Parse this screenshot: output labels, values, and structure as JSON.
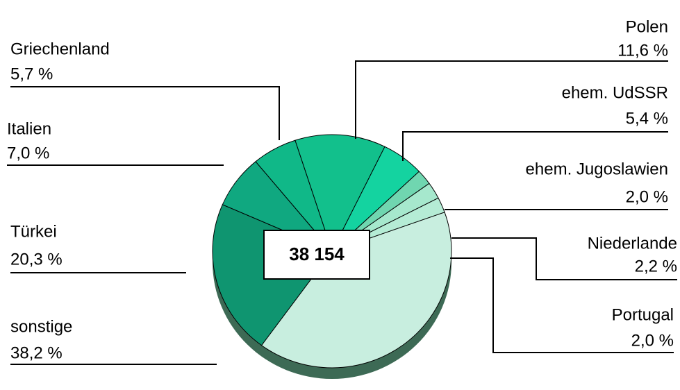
{
  "chart_data": {
    "type": "pie",
    "categories": [
      "Polen",
      "ehem. UdSSR",
      "ehem. Jugoslawien",
      "Niederlande",
      "Portugal",
      "sonstige",
      "Türkei",
      "Italien",
      "Griechenland"
    ],
    "values": [
      11.6,
      5.4,
      2.0,
      2.2,
      2.0,
      38.2,
      20.3,
      7.0,
      5.7
    ],
    "value_labels": [
      "11,6 %",
      "5,4 %",
      "2,0 %",
      "2,2 %",
      "2,0 %",
      "38,2 %",
      "20,3 %",
      "7,0 %",
      "5,7 %"
    ],
    "colors": [
      "#12c08c",
      "#14d3a0",
      "#70d6b0",
      "#a6e8cd",
      "#b5ecd5",
      "#c8eedf",
      "#0f9570",
      "#10a880",
      "#10b888"
    ],
    "center_label": "38 154"
  }
}
